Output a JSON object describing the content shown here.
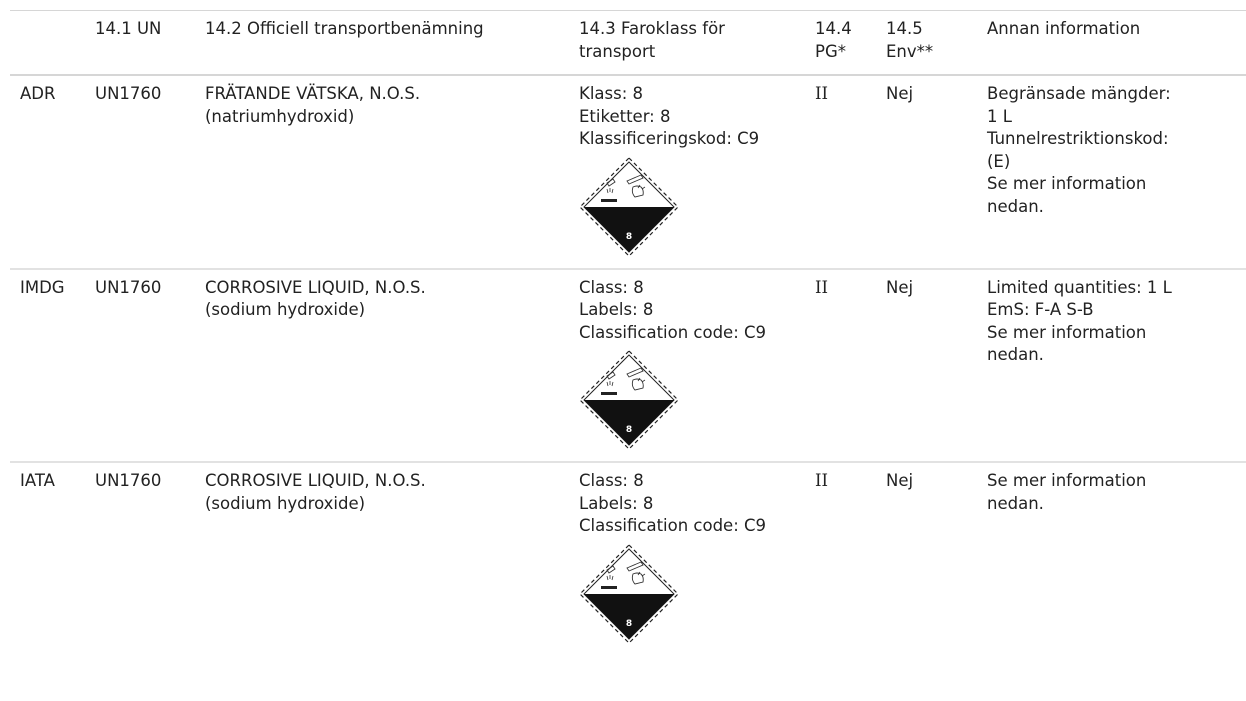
{
  "headers": {
    "mode": "",
    "un": "14.1 UN",
    "name": "14.2 Officiell transportbenämning",
    "hazard": [
      "14.3 Faroklass för",
      "transport"
    ],
    "pg": [
      "14.4",
      "PG*"
    ],
    "env": [
      "14.5",
      "Env**"
    ],
    "other": "Annan information"
  },
  "rows": [
    {
      "mode": "ADR",
      "un": "UN1760",
      "name": [
        "FRÄTANDE VÄTSKA, N.O.S.",
        "(natriumhydroxid)"
      ],
      "hazard": [
        "Klass: 8",
        "Etiketter: 8",
        "Klassificeringskod: C9"
      ],
      "placard_number": "8",
      "pg": "II",
      "env": "Nej",
      "other": [
        "Begränsade mängder:",
        "1 L",
        "Tunnelrestriktionskod:",
        "(E)",
        "Se mer information",
        "nedan."
      ]
    },
    {
      "mode": "IMDG",
      "un": "UN1760",
      "name": [
        "CORROSIVE LIQUID, N.O.S.",
        "(sodium hydroxide)"
      ],
      "hazard": [
        "Class: 8",
        "Labels: 8",
        "Classification code: C9"
      ],
      "placard_number": "8",
      "pg": "II",
      "env": "Nej",
      "other": [
        "Limited quantities: 1 L",
        "EmS: F-A S-B",
        "Se mer information",
        "nedan."
      ]
    },
    {
      "mode": "IATA",
      "un": "UN1760",
      "name": [
        "CORROSIVE LIQUID, N.O.S.",
        "(sodium hydroxide)"
      ],
      "hazard": [
        "Class: 8",
        "Labels: 8",
        "Classification code: C9"
      ],
      "placard_number": "8",
      "pg": "II",
      "env": "Nej",
      "other": [
        "Se mer information",
        "nedan."
      ]
    }
  ]
}
